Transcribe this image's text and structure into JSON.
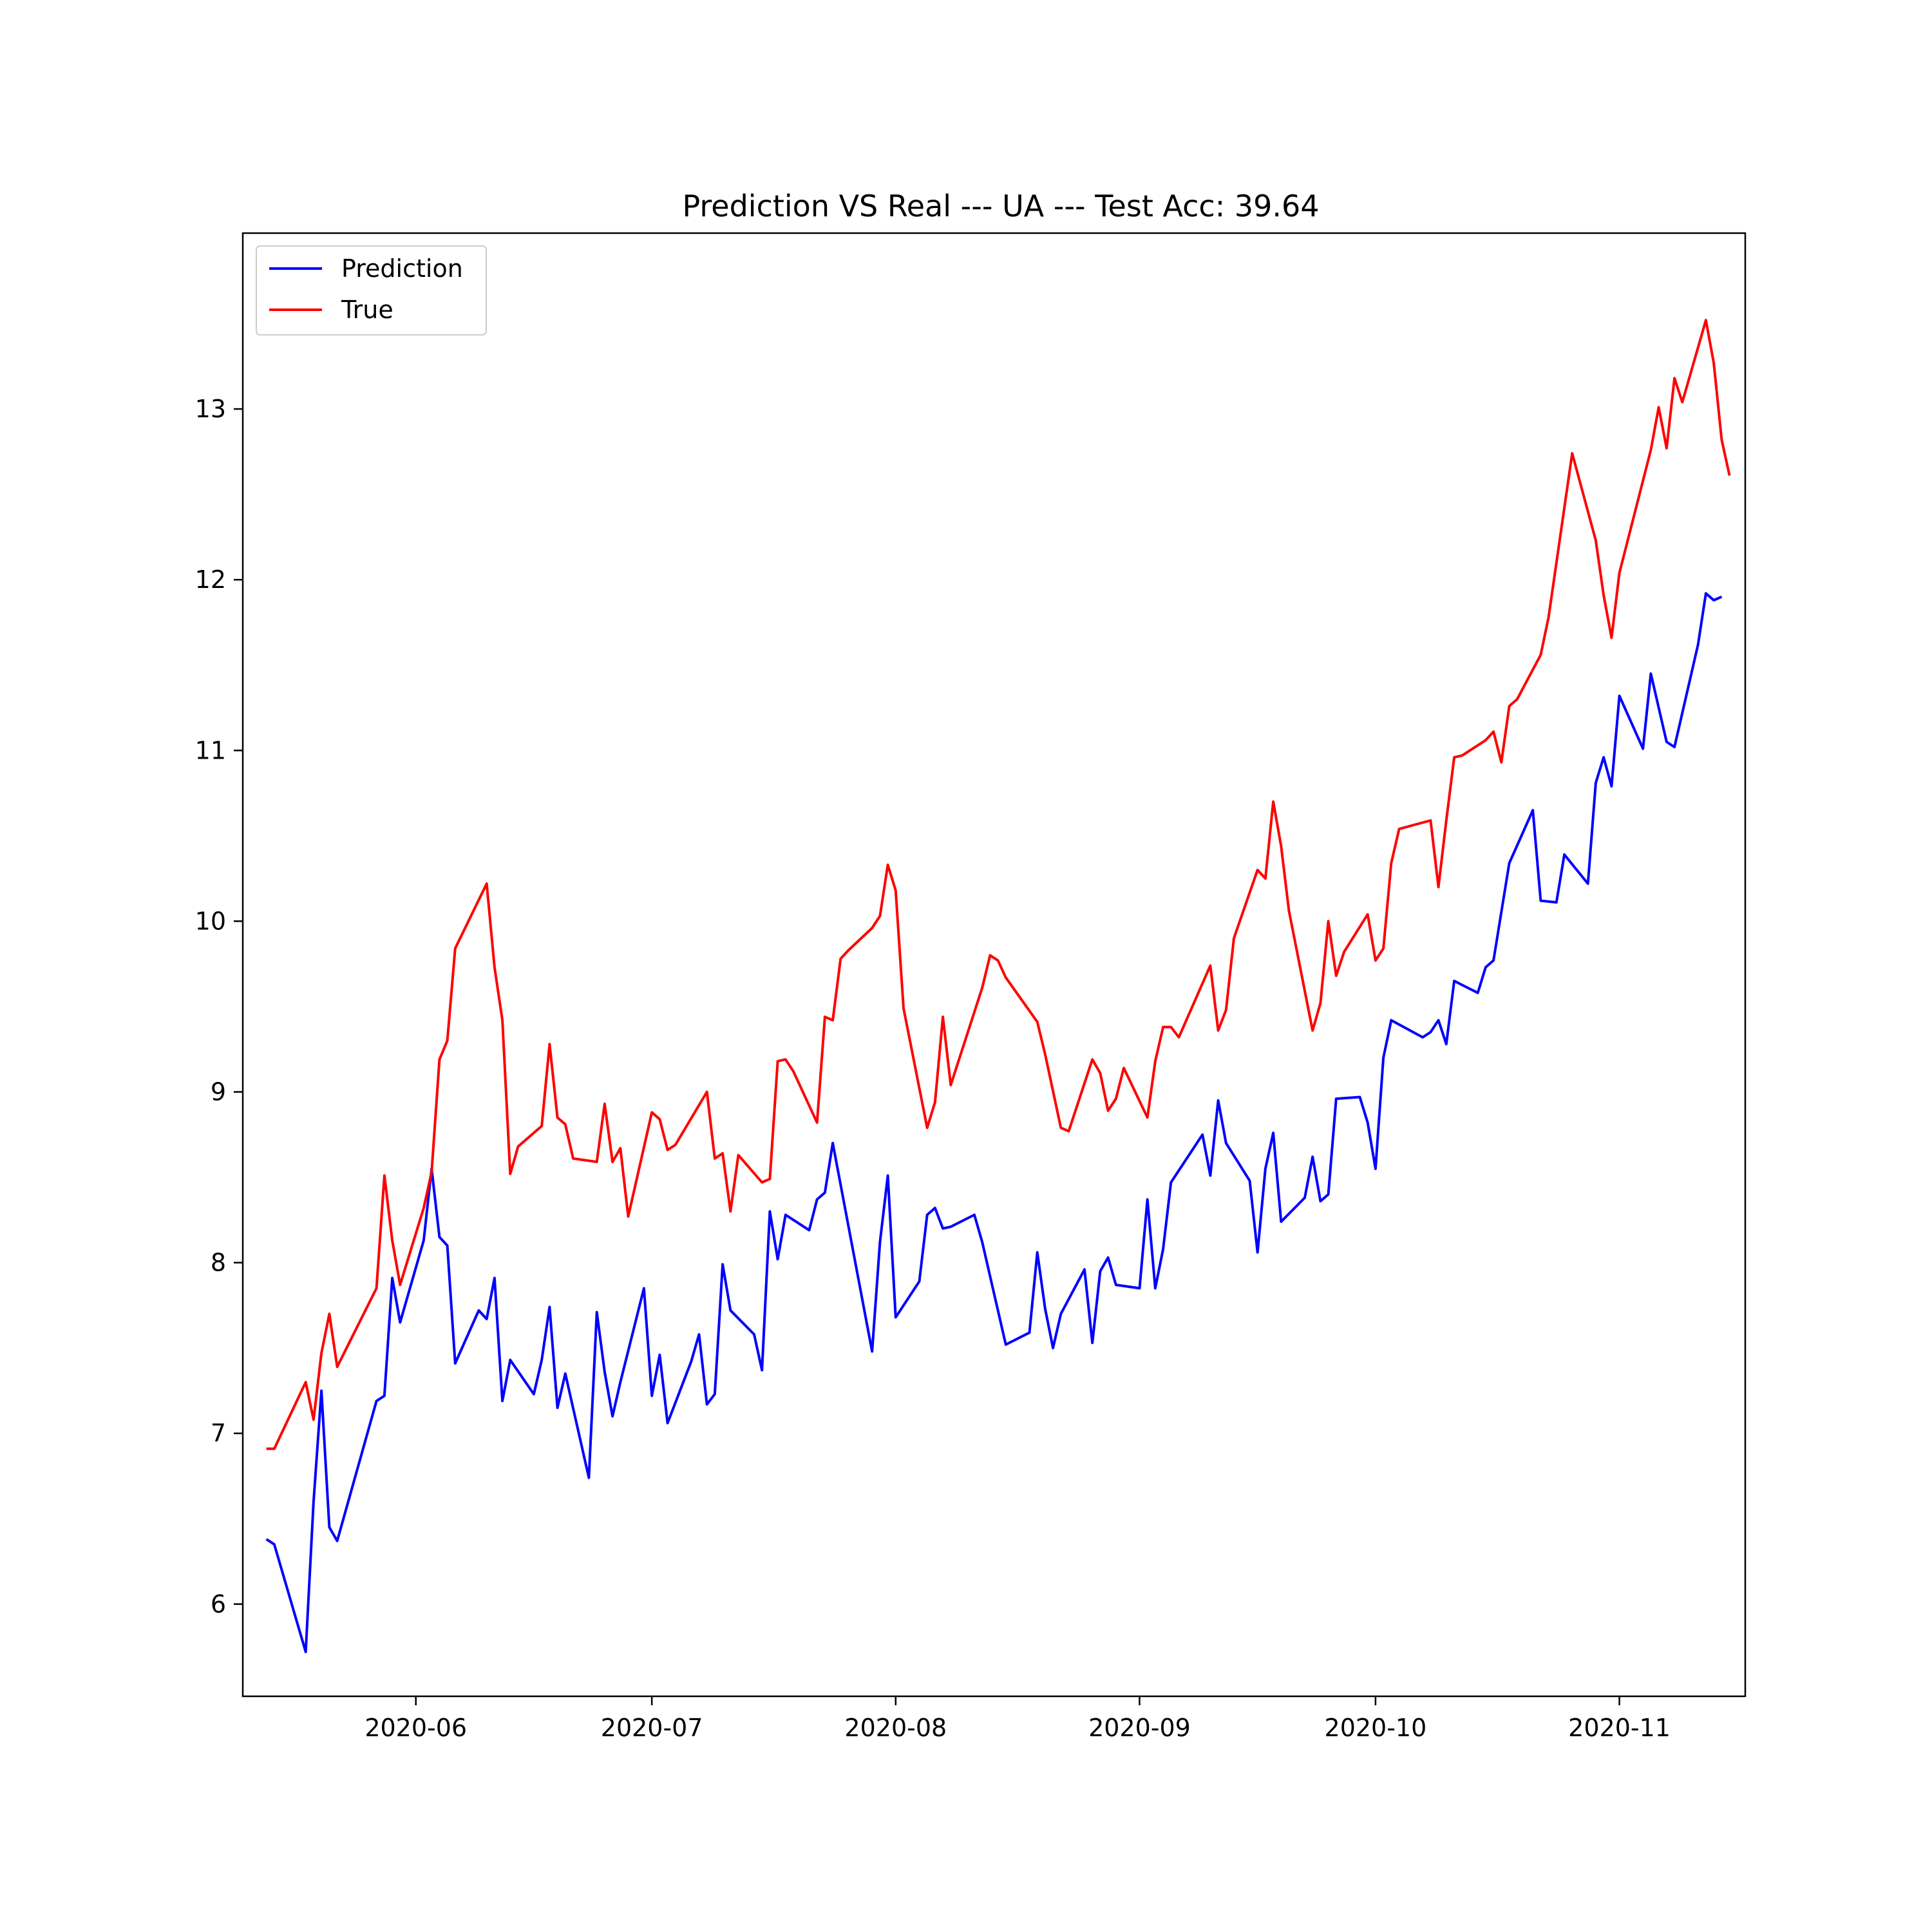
{
  "chart_data": {
    "type": "line",
    "title": "Prediction VS Real --- UA --- Test Acc: 39.64",
    "xlabel": "",
    "ylabel": "",
    "x_axis": {
      "kind": "date",
      "range": [
        "2020-05-10",
        "2020-11-17"
      ],
      "ticks": [
        "2020-06-01",
        "2020-07-01",
        "2020-08-01",
        "2020-09-01",
        "2020-10-01",
        "2020-11-01"
      ],
      "tick_labels": [
        "2020-06",
        "2020-07",
        "2020-08",
        "2020-09",
        "2020-10",
        "2020-11"
      ]
    },
    "y_axis": {
      "range": [
        5.46,
        14.03
      ],
      "ticks": [
        6,
        7,
        8,
        9,
        10,
        11,
        12,
        13
      ],
      "tick_labels": [
        "6",
        "7",
        "8",
        "9",
        "10",
        "11",
        "12",
        "13"
      ]
    },
    "grid": false,
    "legend": {
      "position": "top-left",
      "entries": [
        "Prediction",
        "True"
      ]
    },
    "series": [
      {
        "name": "Prediction",
        "color": "#0000ff",
        "points": [
          [
            "2020-05-13",
            6.38
          ],
          [
            "2020-05-14",
            6.35
          ],
          [
            "2020-05-18",
            5.72
          ],
          [
            "2020-05-19",
            6.6
          ],
          [
            "2020-05-20",
            7.25
          ],
          [
            "2020-05-21",
            6.45
          ],
          [
            "2020-05-22",
            6.37
          ],
          [
            "2020-05-27",
            7.19
          ],
          [
            "2020-05-28",
            7.22
          ],
          [
            "2020-05-29",
            7.91
          ],
          [
            "2020-05-30",
            7.65
          ],
          [
            "2020-06-02",
            8.13
          ],
          [
            "2020-06-03",
            8.55
          ],
          [
            "2020-06-04",
            8.15
          ],
          [
            "2020-06-05",
            8.1
          ],
          [
            "2020-06-06",
            7.41
          ],
          [
            "2020-06-09",
            7.72
          ],
          [
            "2020-06-10",
            7.67
          ],
          [
            "2020-06-11",
            7.91
          ],
          [
            "2020-06-12",
            7.19
          ],
          [
            "2020-06-13",
            7.43
          ],
          [
            "2020-06-16",
            7.23
          ],
          [
            "2020-06-17",
            7.43
          ],
          [
            "2020-06-18",
            7.74
          ],
          [
            "2020-06-19",
            7.15
          ],
          [
            "2020-06-20",
            7.35
          ],
          [
            "2020-06-23",
            6.74
          ],
          [
            "2020-06-24",
            7.71
          ],
          [
            "2020-06-25",
            7.36
          ],
          [
            "2020-06-26",
            7.1
          ],
          [
            "2020-06-27",
            7.3
          ],
          [
            "2020-06-30",
            7.85
          ],
          [
            "2020-07-01",
            7.22
          ],
          [
            "2020-07-02",
            7.46
          ],
          [
            "2020-07-03",
            7.06
          ],
          [
            "2020-07-06",
            7.42
          ],
          [
            "2020-07-07",
            7.58
          ],
          [
            "2020-07-08",
            7.17
          ],
          [
            "2020-07-09",
            7.23
          ],
          [
            "2020-07-10",
            7.99
          ],
          [
            "2020-07-11",
            7.72
          ],
          [
            "2020-07-14",
            7.58
          ],
          [
            "2020-07-15",
            7.37
          ],
          [
            "2020-07-16",
            8.3
          ],
          [
            "2020-07-17",
            8.02
          ],
          [
            "2020-07-18",
            8.28
          ],
          [
            "2020-07-21",
            8.19
          ],
          [
            "2020-07-22",
            8.37
          ],
          [
            "2020-07-23",
            8.41
          ],
          [
            "2020-07-24",
            8.7
          ],
          [
            "2020-07-29",
            7.48
          ],
          [
            "2020-07-30",
            8.12
          ],
          [
            "2020-07-31",
            8.51
          ],
          [
            "2020-08-01",
            7.68
          ],
          [
            "2020-08-04",
            7.89
          ],
          [
            "2020-08-05",
            8.28
          ],
          [
            "2020-08-06",
            8.32
          ],
          [
            "2020-08-07",
            8.2
          ],
          [
            "2020-08-08",
            8.21
          ],
          [
            "2020-08-11",
            8.28
          ],
          [
            "2020-08-12",
            8.12
          ],
          [
            "2020-08-15",
            7.52
          ],
          [
            "2020-08-18",
            7.59
          ],
          [
            "2020-08-19",
            8.06
          ],
          [
            "2020-08-20",
            7.73
          ],
          [
            "2020-08-21",
            7.5
          ],
          [
            "2020-08-22",
            7.7
          ],
          [
            "2020-08-25",
            7.96
          ],
          [
            "2020-08-26",
            7.53
          ],
          [
            "2020-08-27",
            7.95
          ],
          [
            "2020-08-28",
            8.03
          ],
          [
            "2020-08-29",
            7.87
          ],
          [
            "2020-09-01",
            7.85
          ],
          [
            "2020-09-02",
            8.37
          ],
          [
            "2020-09-03",
            7.85
          ],
          [
            "2020-09-04",
            8.08
          ],
          [
            "2020-09-05",
            8.47
          ],
          [
            "2020-09-09",
            8.75
          ],
          [
            "2020-09-10",
            8.51
          ],
          [
            "2020-09-11",
            8.95
          ],
          [
            "2020-09-12",
            8.7
          ],
          [
            "2020-09-15",
            8.48
          ],
          [
            "2020-09-16",
            8.06
          ],
          [
            "2020-09-17",
            8.55
          ],
          [
            "2020-09-18",
            8.76
          ],
          [
            "2020-09-19",
            8.24
          ],
          [
            "2020-09-22",
            8.38
          ],
          [
            "2020-09-23",
            8.62
          ],
          [
            "2020-09-24",
            8.36
          ],
          [
            "2020-09-25",
            8.4
          ],
          [
            "2020-09-26",
            8.96
          ],
          [
            "2020-09-29",
            8.97
          ],
          [
            "2020-09-30",
            8.82
          ],
          [
            "2020-10-01",
            8.55
          ],
          [
            "2020-10-02",
            9.2
          ],
          [
            "2020-10-03",
            9.42
          ],
          [
            "2020-10-07",
            9.32
          ],
          [
            "2020-10-08",
            9.35
          ],
          [
            "2020-10-09",
            9.42
          ],
          [
            "2020-10-10",
            9.28
          ],
          [
            "2020-10-11",
            9.65
          ],
          [
            "2020-10-14",
            9.58
          ],
          [
            "2020-10-15",
            9.73
          ],
          [
            "2020-10-16",
            9.77
          ],
          [
            "2020-10-18",
            10.34
          ],
          [
            "2020-10-21",
            10.65
          ],
          [
            "2020-10-22",
            10.12
          ],
          [
            "2020-10-24",
            10.11
          ],
          [
            "2020-10-25",
            10.39
          ],
          [
            "2020-10-28",
            10.22
          ],
          [
            "2020-10-29",
            10.81
          ],
          [
            "2020-10-30",
            10.96
          ],
          [
            "2020-10-31",
            10.79
          ],
          [
            "2020-11-01",
            11.32
          ],
          [
            "2020-11-04",
            11.01
          ],
          [
            "2020-11-05",
            11.45
          ],
          [
            "2020-11-07",
            11.05
          ],
          [
            "2020-11-08",
            11.02
          ],
          [
            "2020-11-11",
            11.62
          ],
          [
            "2020-11-12",
            11.92
          ],
          [
            "2020-11-13",
            11.88
          ],
          [
            "2020-11-14",
            11.9
          ]
        ]
      },
      {
        "name": "True",
        "color": "#ff0000",
        "points": [
          [
            "2020-05-13",
            6.91
          ],
          [
            "2020-05-14",
            6.91
          ],
          [
            "2020-05-18",
            7.3
          ],
          [
            "2020-05-19",
            7.08
          ],
          [
            "2020-05-20",
            7.47
          ],
          [
            "2020-05-21",
            7.7
          ],
          [
            "2020-05-22",
            7.39
          ],
          [
            "2020-05-27",
            7.85
          ],
          [
            "2020-05-28",
            8.51
          ],
          [
            "2020-05-29",
            8.13
          ],
          [
            "2020-05-30",
            7.87
          ],
          [
            "2020-06-02",
            8.32
          ],
          [
            "2020-06-03",
            8.53
          ],
          [
            "2020-06-04",
            9.19
          ],
          [
            "2020-06-05",
            9.3
          ],
          [
            "2020-06-06",
            9.84
          ],
          [
            "2020-06-10",
            10.22
          ],
          [
            "2020-06-11",
            9.73
          ],
          [
            "2020-06-12",
            9.42
          ],
          [
            "2020-06-13",
            8.52
          ],
          [
            "2020-06-14",
            8.68
          ],
          [
            "2020-06-17",
            8.8
          ],
          [
            "2020-06-18",
            9.28
          ],
          [
            "2020-06-19",
            8.85
          ],
          [
            "2020-06-20",
            8.81
          ],
          [
            "2020-06-21",
            8.61
          ],
          [
            "2020-06-24",
            8.59
          ],
          [
            "2020-06-25",
            8.93
          ],
          [
            "2020-06-26",
            8.59
          ],
          [
            "2020-06-27",
            8.67
          ],
          [
            "2020-06-28",
            8.27
          ],
          [
            "2020-07-01",
            8.88
          ],
          [
            "2020-07-02",
            8.84
          ],
          [
            "2020-07-03",
            8.66
          ],
          [
            "2020-07-04",
            8.69
          ],
          [
            "2020-07-08",
            9.0
          ],
          [
            "2020-07-09",
            8.61
          ],
          [
            "2020-07-10",
            8.64
          ],
          [
            "2020-07-11",
            8.3
          ],
          [
            "2020-07-12",
            8.63
          ],
          [
            "2020-07-15",
            8.47
          ],
          [
            "2020-07-16",
            8.49
          ],
          [
            "2020-07-17",
            9.18
          ],
          [
            "2020-07-18",
            9.19
          ],
          [
            "2020-07-19",
            9.12
          ],
          [
            "2020-07-22",
            8.82
          ],
          [
            "2020-07-23",
            9.44
          ],
          [
            "2020-07-24",
            9.42
          ],
          [
            "2020-07-25",
            9.78
          ],
          [
            "2020-07-26",
            9.83
          ],
          [
            "2020-07-29",
            9.96
          ],
          [
            "2020-07-30",
            10.03
          ],
          [
            "2020-07-31",
            10.33
          ],
          [
            "2020-08-01",
            10.18
          ],
          [
            "2020-08-02",
            9.49
          ],
          [
            "2020-08-05",
            8.79
          ],
          [
            "2020-08-06",
            8.94
          ],
          [
            "2020-08-07",
            9.44
          ],
          [
            "2020-08-08",
            9.04
          ],
          [
            "2020-08-12",
            9.61
          ],
          [
            "2020-08-13",
            9.8
          ],
          [
            "2020-08-14",
            9.77
          ],
          [
            "2020-08-15",
            9.67
          ],
          [
            "2020-08-19",
            9.41
          ],
          [
            "2020-08-20",
            9.22
          ],
          [
            "2020-08-22",
            8.79
          ],
          [
            "2020-08-23",
            8.77
          ],
          [
            "2020-08-26",
            9.19
          ],
          [
            "2020-08-27",
            9.11
          ],
          [
            "2020-08-28",
            8.89
          ],
          [
            "2020-08-29",
            8.96
          ],
          [
            "2020-08-30",
            9.14
          ],
          [
            "2020-09-02",
            8.85
          ],
          [
            "2020-09-03",
            9.18
          ],
          [
            "2020-09-04",
            9.38
          ],
          [
            "2020-09-05",
            9.38
          ],
          [
            "2020-09-06",
            9.32
          ],
          [
            "2020-09-10",
            9.74
          ],
          [
            "2020-09-11",
            9.36
          ],
          [
            "2020-09-12",
            9.48
          ],
          [
            "2020-09-13",
            9.9
          ],
          [
            "2020-09-16",
            10.3
          ],
          [
            "2020-09-17",
            10.25
          ],
          [
            "2020-09-18",
            10.7
          ],
          [
            "2020-09-19",
            10.44
          ],
          [
            "2020-09-20",
            10.06
          ],
          [
            "2020-09-23",
            9.36
          ],
          [
            "2020-09-24",
            9.52
          ],
          [
            "2020-09-25",
            10.0
          ],
          [
            "2020-09-26",
            9.68
          ],
          [
            "2020-09-27",
            9.82
          ],
          [
            "2020-09-30",
            10.04
          ],
          [
            "2020-10-01",
            9.77
          ],
          [
            "2020-10-02",
            9.84
          ],
          [
            "2020-10-03",
            10.34
          ],
          [
            "2020-10-04",
            10.54
          ],
          [
            "2020-10-08",
            10.59
          ],
          [
            "2020-10-09",
            10.2
          ],
          [
            "2020-10-10",
            10.59
          ],
          [
            "2020-10-11",
            10.96
          ],
          [
            "2020-10-12",
            10.97
          ],
          [
            "2020-10-15",
            11.06
          ],
          [
            "2020-10-16",
            11.11
          ],
          [
            "2020-10-17",
            10.93
          ],
          [
            "2020-10-18",
            11.26
          ],
          [
            "2020-10-19",
            11.3
          ],
          [
            "2020-10-22",
            11.56
          ],
          [
            "2020-10-23",
            11.78
          ],
          [
            "2020-10-26",
            12.74
          ],
          [
            "2020-10-29",
            12.23
          ],
          [
            "2020-10-30",
            11.91
          ],
          [
            "2020-10-31",
            11.66
          ],
          [
            "2020-11-01",
            12.04
          ],
          [
            "2020-11-05",
            12.76
          ],
          [
            "2020-11-06",
            13.01
          ],
          [
            "2020-11-07",
            12.77
          ],
          [
            "2020-11-08",
            13.18
          ],
          [
            "2020-11-09",
            13.04
          ],
          [
            "2020-11-12",
            13.52
          ],
          [
            "2020-11-13",
            13.27
          ],
          [
            "2020-11-14",
            12.82
          ],
          [
            "2020-11-15",
            12.61
          ]
        ]
      }
    ]
  }
}
